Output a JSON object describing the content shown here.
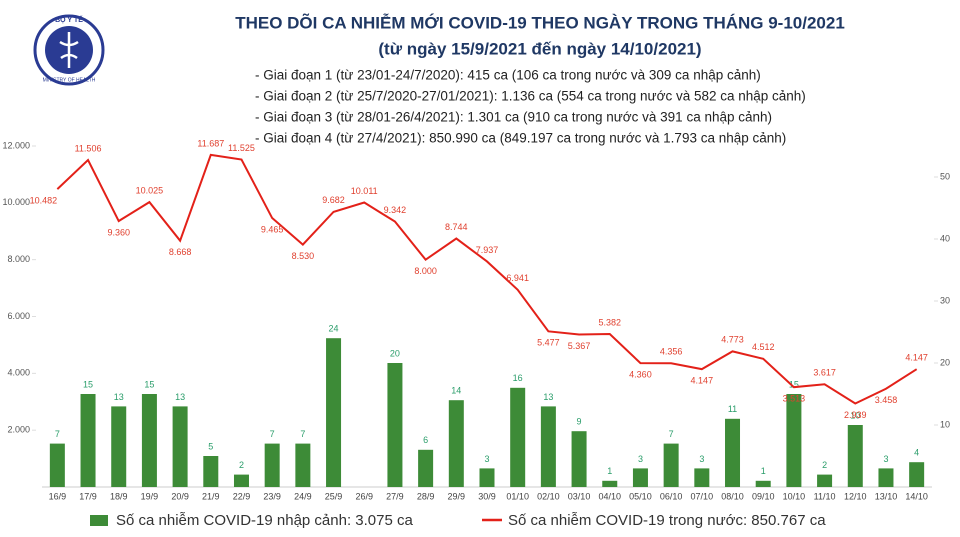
{
  "chart_data": {
    "type": "combo",
    "logo_text": [
      "BỘ Y TẾ",
      "MINISTRY OF HEALTH"
    ],
    "title": "THEO DÕI CA NHIỄM MỚI COVID-19 THEO NGÀY TRONG THÁNG 9-10/2021",
    "subtitle": "(từ ngày 15/9/2021 đến ngày 14/10/2021)",
    "annotations": [
      "- Giai đoạn 1 (từ 23/01-24/7/2020): 415 ca (106 ca trong nước và 309 ca nhập cảnh)",
      "- Giai đoạn 2 (từ 25/7/2020-27/01/2021): 1.136 ca (554 ca trong nước và 582 ca nhập cảnh)",
      "- Giai đoạn 3 (từ 28/01-26/4/2021): 1.301 ca (910 ca trong nước và 391 ca nhập cảnh)",
      "- Giai đoạn 4 (từ 27/4/2021): 850.990 ca (849.197 ca trong nước và 1.793 ca nhập cảnh)"
    ],
    "categories": [
      "16/9",
      "17/9",
      "18/9",
      "19/9",
      "20/9",
      "21/9",
      "22/9",
      "23/9",
      "24/9",
      "25/9",
      "26/9",
      "27/9",
      "28/9",
      "29/9",
      "30/9",
      "01/10",
      "02/10",
      "03/10",
      "04/10",
      "05/10",
      "06/10",
      "07/10",
      "08/10",
      "09/10",
      "10/10",
      "11/10",
      "12/10",
      "13/10",
      "14/10"
    ],
    "series": [
      {
        "name": "Số ca nhiễm COVID-19 nhập cảnh: 3.075 ca",
        "type": "bar",
        "axis": "y2",
        "color": "#3d8b37",
        "label_color": "#2a9d6a",
        "values": [
          7,
          15,
          13,
          15,
          13,
          5,
          2,
          7,
          7,
          24,
          null,
          20,
          6,
          14,
          3,
          16,
          13,
          9,
          1,
          3,
          7,
          3,
          11,
          1,
          15,
          2,
          10,
          3,
          4
        ]
      },
      {
        "name": "Số ca nhiễm COVID-19 trong nước: 850.767 ca",
        "type": "line",
        "color": "#e32119",
        "label_color": "#e0402f",
        "values": [
          10482,
          11506,
          9360,
          10025,
          8668,
          11687,
          11525,
          9465,
          8530,
          9682,
          10011,
          9342,
          8000,
          8744,
          7937,
          6941,
          5477,
          5367,
          5382,
          4360,
          4356,
          4147,
          4773,
          4512,
          3513,
          3617,
          2939,
          3458,
          4147
        ],
        "value_labels": [
          "10.482",
          "11.506",
          "9.360",
          "10.025",
          "8.668",
          "11.687",
          "11.525",
          "9.465",
          "8.530",
          "9.682",
          "10.011",
          "9.342",
          "8.000",
          "8.744",
          "7.937",
          "6.941",
          "5.477",
          "5.367",
          "5.382",
          "4.360",
          "4.356",
          "4.147",
          "4.773",
          "4.512",
          "3.513",
          "3.617",
          "2.939",
          "3.458",
          "4.147"
        ]
      }
    ],
    "ylim": [
      0,
      12000
    ],
    "yticks": [
      {
        "value": 2000,
        "label": "2.000"
      },
      {
        "value": 4000,
        "label": "4.000"
      },
      {
        "value": 6000,
        "label": "6.000"
      },
      {
        "value": 8000,
        "label": "8.000"
      },
      {
        "value": 10000,
        "label": "10.000"
      },
      {
        "value": 12000,
        "label": "12.000"
      }
    ],
    "y2lim": [
      0,
      55
    ],
    "y2ticks": [
      10,
      20,
      30,
      40,
      50
    ]
  }
}
